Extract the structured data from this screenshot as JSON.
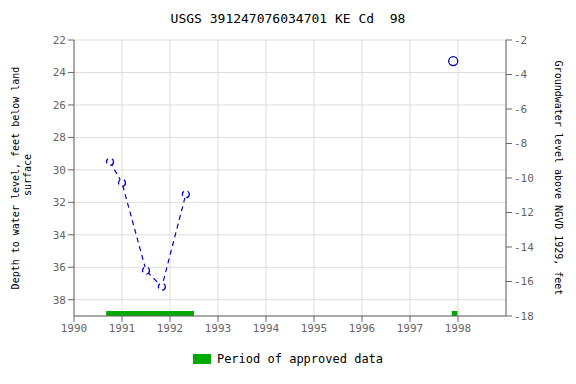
{
  "chart_data": {
    "type": "line",
    "title": "USGS 391247076034701 KE Cd  98",
    "y_label": "Depth to water level, feet below land\n surface",
    "y2_label": "Groundwater level above NGVD 1929, feet",
    "xlim": [
      1990,
      1999
    ],
    "xticks": [
      1990,
      1991,
      1992,
      1993,
      1994,
      1995,
      1996,
      1997,
      1998
    ],
    "ylim": [
      39,
      22
    ],
    "yticks": [
      22,
      24,
      26,
      28,
      30,
      32,
      34,
      36,
      38
    ],
    "y2lim": [
      -18,
      -2
    ],
    "y2ticks": [
      -2,
      -4,
      -6,
      -8,
      -10,
      -12,
      -14,
      -16,
      -18
    ],
    "grid": true,
    "legend": "bottom",
    "series": [
      {
        "type": "line",
        "x": [
          1990.75,
          1991.0,
          1991.5,
          1991.83,
          1992.33
        ],
        "values": [
          29.5,
          30.8,
          36.2,
          37.2,
          31.5
        ],
        "color": "#0000cc",
        "marker": "circle",
        "line_style": "dashed"
      },
      {
        "type": "scatter",
        "x": [
          1997.9
        ],
        "values": [
          23.3
        ],
        "color": "#0000cc",
        "marker": "circle",
        "line_style": "none"
      },
      {
        "type": "period",
        "name": "Period of approved data",
        "color": "#00aa00",
        "values": [
          [
            1990.67,
            1992.5
          ],
          [
            1997.87,
            1997.99
          ]
        ]
      }
    ]
  }
}
